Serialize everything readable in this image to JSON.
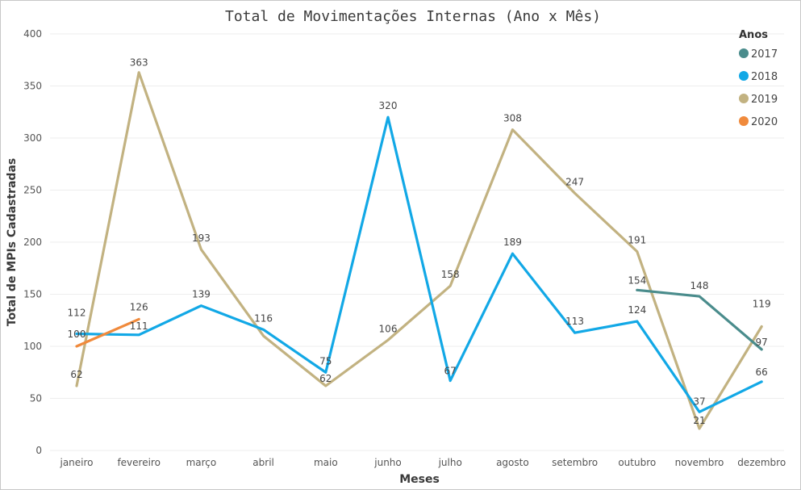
{
  "chart_data": {
    "type": "line",
    "title": "Total de Movimentações Internas (Ano x Mês)",
    "xlabel": "Meses",
    "ylabel": "Total de MPIs Cadastradas",
    "ylim": [
      0,
      400
    ],
    "yticks": [
      "0",
      "50",
      "100",
      "150",
      "200",
      "250",
      "300",
      "350",
      "400"
    ],
    "grid": true,
    "legend_title": "Anos",
    "legend_position": "top-right",
    "categories": [
      "janeiro",
      "fevereiro",
      "março",
      "abril",
      "maio",
      "junho",
      "julho",
      "agosto",
      "setembro",
      "outubro",
      "novembro",
      "dezembro"
    ],
    "series": [
      {
        "name": "2017",
        "color": "#4a8c8c",
        "values": [
          null,
          null,
          null,
          null,
          null,
          null,
          null,
          null,
          null,
          154,
          148,
          97
        ]
      },
      {
        "name": "2018",
        "color": "#12a8e6",
        "values": [
          112,
          111,
          139,
          116,
          75,
          320,
          67,
          189,
          113,
          124,
          37,
          66
        ]
      },
      {
        "name": "2019",
        "color": "#c2b281",
        "values": [
          62,
          363,
          193,
          110,
          62,
          106,
          158,
          308,
          247,
          191,
          21,
          119
        ]
      },
      {
        "name": "2020",
        "color": "#f08a3c",
        "values": [
          100,
          126,
          null,
          null,
          null,
          null,
          null,
          null,
          null,
          null,
          null,
          null
        ]
      }
    ],
    "data_labels": [
      {
        "series": "2018",
        "category": "janeiro",
        "text": "112"
      },
      {
        "series": "2020",
        "category": "janeiro",
        "text": "100"
      },
      {
        "series": "2019",
        "category": "janeiro",
        "text": "62"
      },
      {
        "series": "2019",
        "category": "fevereiro",
        "text": "363"
      },
      {
        "series": "2020",
        "category": "fevereiro",
        "text": "126"
      },
      {
        "series": "2018",
        "category": "fevereiro",
        "text": "111"
      },
      {
        "series": "2019",
        "category": "março",
        "text": "193"
      },
      {
        "series": "2018",
        "category": "março",
        "text": "139"
      },
      {
        "series": "2018",
        "category": "abril",
        "text": "116"
      },
      {
        "series": "2018",
        "category": "maio",
        "text": "75"
      },
      {
        "series": "2019",
        "category": "maio",
        "text": "62"
      },
      {
        "series": "2018",
        "category": "junho",
        "text": "320"
      },
      {
        "series": "2019",
        "category": "junho",
        "text": "106"
      },
      {
        "series": "2019",
        "category": "julho",
        "text": "158"
      },
      {
        "series": "2018",
        "category": "julho",
        "text": "67"
      },
      {
        "series": "2019",
        "category": "agosto",
        "text": "308"
      },
      {
        "series": "2018",
        "category": "agosto",
        "text": "189"
      },
      {
        "series": "2019",
        "category": "setembro",
        "text": "247"
      },
      {
        "series": "2018",
        "category": "setembro",
        "text": "113"
      },
      {
        "series": "2019",
        "category": "outubro",
        "text": "191"
      },
      {
        "series": "2017",
        "category": "outubro",
        "text": "154"
      },
      {
        "series": "2018",
        "category": "outubro",
        "text": "124"
      },
      {
        "series": "2017",
        "category": "novembro",
        "text": "148"
      },
      {
        "series": "2018",
        "category": "novembro",
        "text": "37"
      },
      {
        "series": "2019",
        "category": "novembro",
        "text": "21"
      },
      {
        "series": "2019",
        "category": "dezembro",
        "text": "119"
      },
      {
        "series": "2017",
        "category": "dezembro",
        "text": "97"
      },
      {
        "series": "2018",
        "category": "dezembro",
        "text": "66"
      }
    ]
  }
}
